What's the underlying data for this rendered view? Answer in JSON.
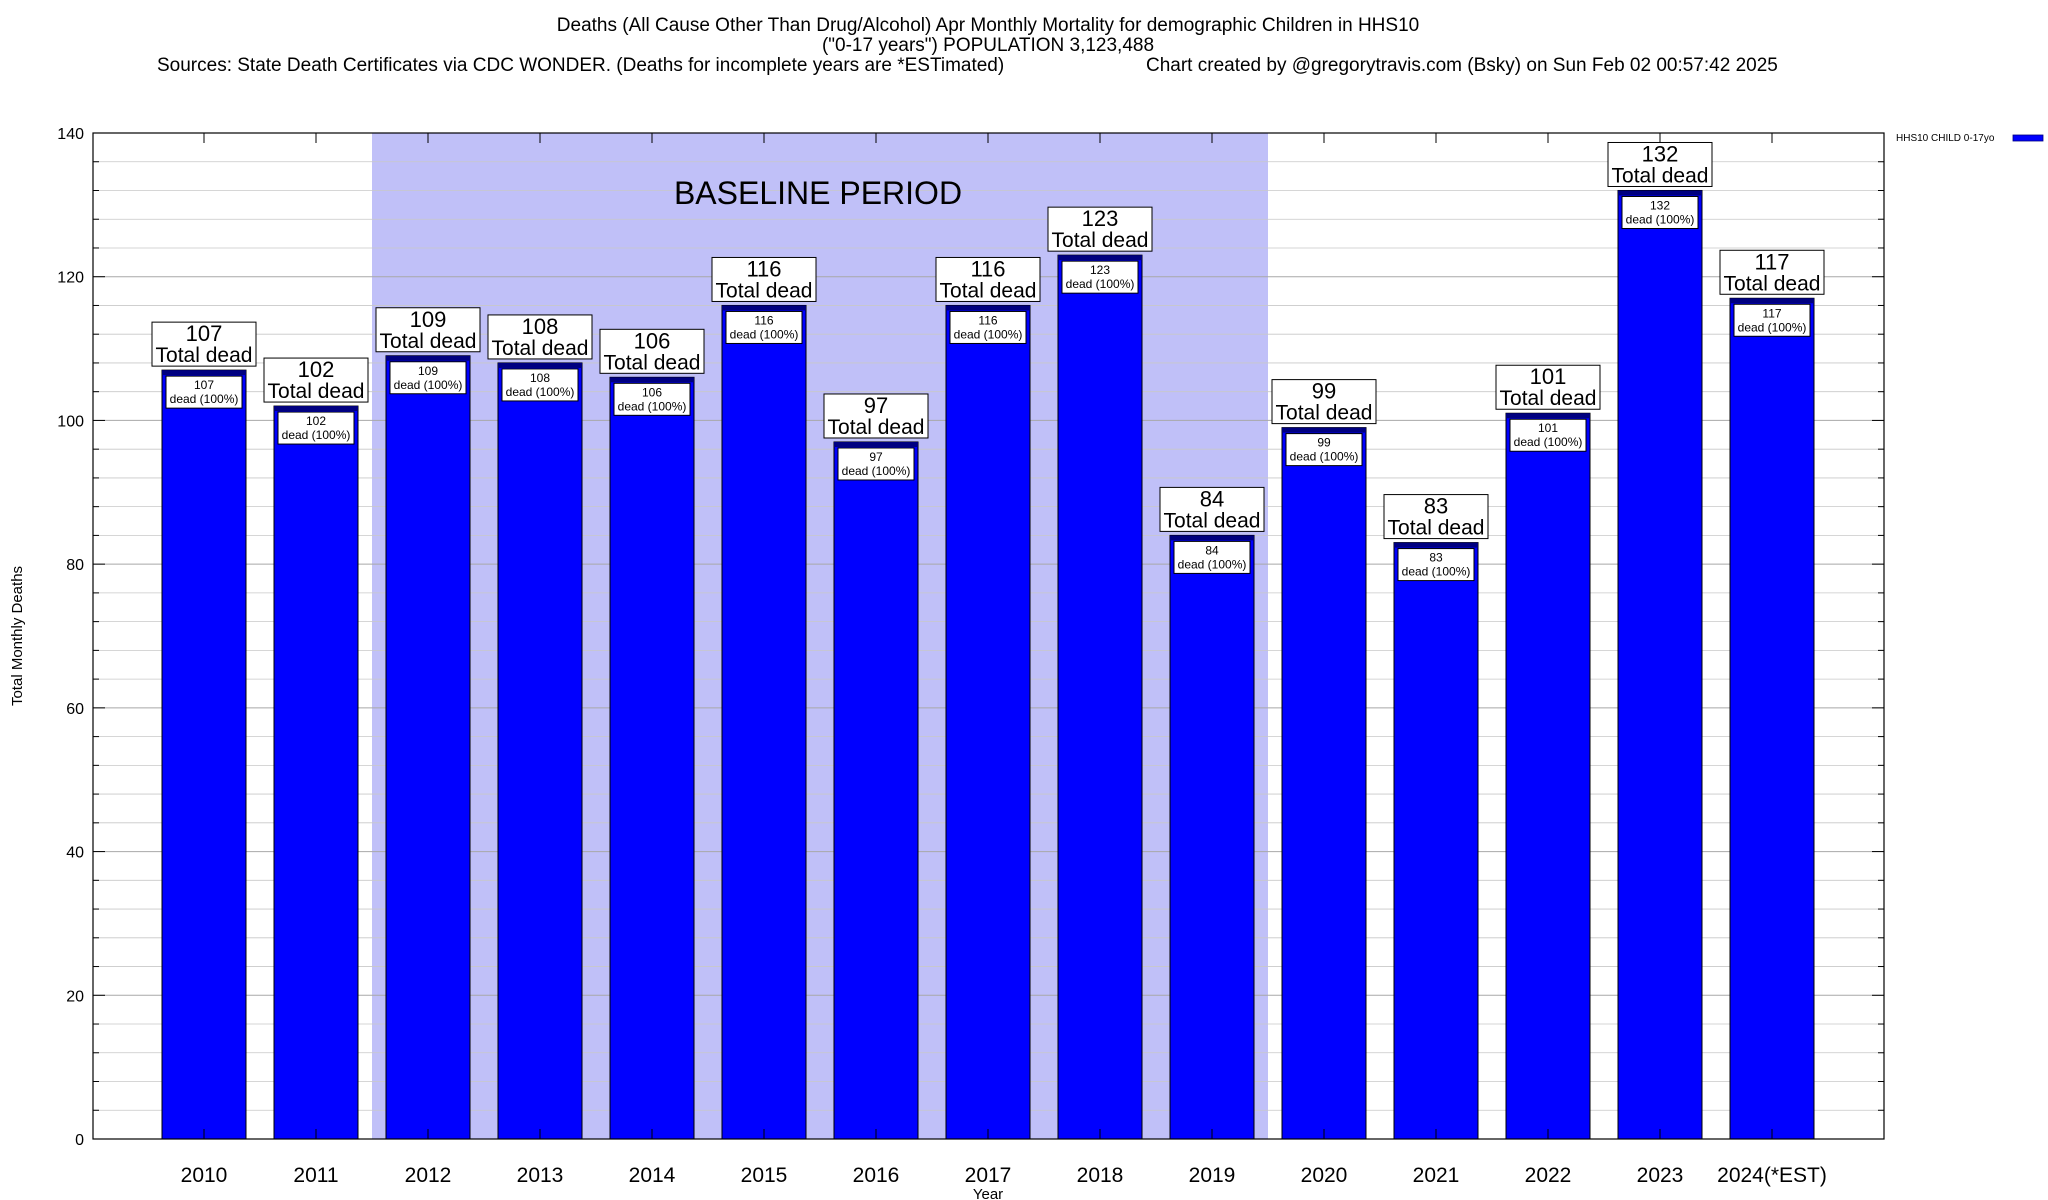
{
  "chart_data": {
    "type": "bar",
    "title_lines": [
      "Deaths (All Cause Other Than Drug/Alcohol) Apr Monthly Mortality for demographic Children in HHS10",
      "(\"0-17 years\") POPULATION 3,123,488"
    ],
    "sources": "Sources: State Death Certificates via CDC WONDER. (Deaths for incomplete years are *ESTimated)",
    "credit": "Chart created by @gregorytravis.com (Bsky) on Sun Feb 02 00:57:42 2025",
    "xlabel": "Year",
    "ylabel": "Total Monthly Deaths",
    "ylim": [
      0,
      140
    ],
    "y_major_ticks": [
      0,
      20,
      40,
      60,
      80,
      100,
      120,
      140
    ],
    "y_minor_step": 4,
    "grid": true,
    "categories": [
      "2010",
      "2011",
      "2012",
      "2013",
      "2014",
      "2015",
      "2016",
      "2017",
      "2018",
      "2019",
      "2020",
      "2021",
      "2022",
      "2023",
      "2024(*EST)"
    ],
    "series": [
      {
        "name": "HHS10 CHILD 0-17yo",
        "color": "#0000ff",
        "values": [
          107,
          102,
          109,
          108,
          106,
          116,
          97,
          116,
          123,
          84,
          99,
          83,
          101,
          132,
          117
        ]
      }
    ],
    "bar_top_color": "#000080",
    "total_label_suffix": "Total dead",
    "share_label_text": "dead (100%)",
    "baseline": {
      "label": "BASELINE PERIOD",
      "start_category": "2012",
      "end_category": "2019",
      "color": "#c0c0f8"
    },
    "legend_position": "top-right"
  }
}
